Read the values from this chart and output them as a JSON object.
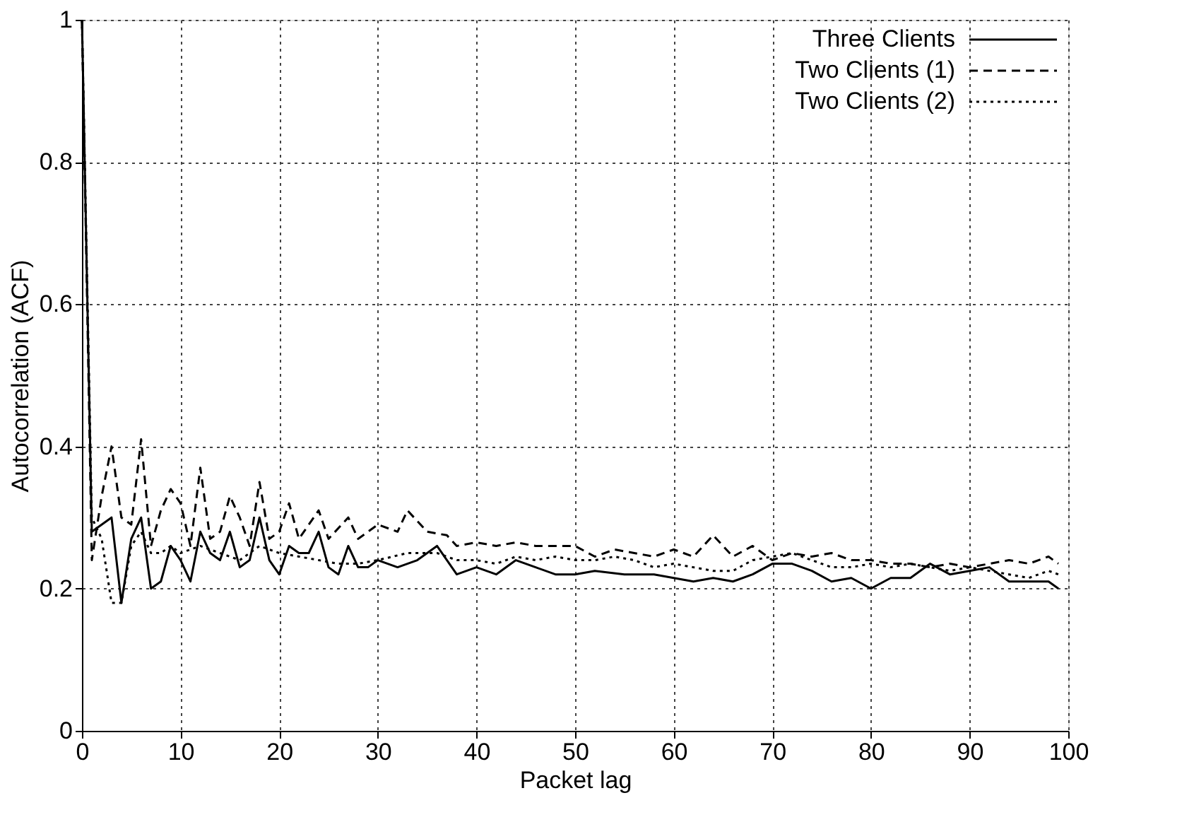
{
  "chart_data": {
    "type": "line",
    "xlabel": "Packet lag",
    "ylabel": "Autocorrelation (ACF)",
    "xlim": [
      0,
      100
    ],
    "ylim": [
      0,
      1
    ],
    "xticks": [
      0,
      10,
      20,
      30,
      40,
      50,
      60,
      70,
      80,
      90,
      100
    ],
    "yticks": [
      0,
      0.2,
      0.4,
      0.6,
      0.8,
      1
    ],
    "grid": true,
    "legend": "top right",
    "marker": "none",
    "series": [
      {
        "name": "Three Clients",
        "color": "#000000",
        "line_style": "solid",
        "x": [
          0,
          1,
          2,
          3,
          4,
          5,
          6,
          7,
          8,
          9,
          10,
          11,
          12,
          13,
          14,
          15,
          16,
          17,
          18,
          19,
          20,
          21,
          22,
          23,
          24,
          25,
          26,
          27,
          28,
          29,
          30,
          32,
          34,
          36,
          38,
          40,
          42,
          44,
          46,
          48,
          50,
          52,
          55,
          58,
          60,
          62,
          64,
          66,
          68,
          70,
          72,
          74,
          76,
          78,
          80,
          82,
          84,
          86,
          88,
          90,
          92,
          94,
          96,
          98,
          99
        ],
        "values": [
          1.0,
          0.28,
          0.29,
          0.3,
          0.18,
          0.27,
          0.3,
          0.2,
          0.21,
          0.26,
          0.24,
          0.21,
          0.28,
          0.25,
          0.24,
          0.28,
          0.23,
          0.24,
          0.3,
          0.24,
          0.22,
          0.26,
          0.25,
          0.25,
          0.28,
          0.23,
          0.22,
          0.26,
          0.23,
          0.23,
          0.24,
          0.23,
          0.24,
          0.26,
          0.22,
          0.23,
          0.22,
          0.24,
          0.23,
          0.22,
          0.22,
          0.225,
          0.22,
          0.22,
          0.215,
          0.21,
          0.215,
          0.21,
          0.22,
          0.235,
          0.235,
          0.225,
          0.21,
          0.215,
          0.2,
          0.215,
          0.215,
          0.235,
          0.22,
          0.225,
          0.23,
          0.21,
          0.21,
          0.21,
          0.2
        ]
      },
      {
        "name": "Two Clients (1)",
        "color": "#000000",
        "line_style": "dashed",
        "x": [
          0,
          1,
          2,
          3,
          4,
          5,
          6,
          7,
          8,
          9,
          10,
          11,
          12,
          13,
          14,
          15,
          16,
          17,
          18,
          19,
          20,
          21,
          22,
          24,
          25,
          27,
          28,
          30,
          32,
          33,
          35,
          37,
          38,
          40,
          42,
          44,
          46,
          48,
          50,
          52,
          54,
          56,
          58,
          60,
          62,
          64,
          66,
          68,
          70,
          72,
          74,
          76,
          78,
          80,
          82,
          84,
          86,
          88,
          90,
          92,
          94,
          96,
          98,
          99
        ],
        "values": [
          1.0,
          0.24,
          0.33,
          0.4,
          0.3,
          0.29,
          0.41,
          0.26,
          0.31,
          0.34,
          0.32,
          0.26,
          0.37,
          0.27,
          0.28,
          0.33,
          0.3,
          0.26,
          0.35,
          0.27,
          0.28,
          0.32,
          0.27,
          0.31,
          0.27,
          0.3,
          0.27,
          0.29,
          0.28,
          0.31,
          0.28,
          0.275,
          0.26,
          0.265,
          0.26,
          0.265,
          0.26,
          0.26,
          0.26,
          0.245,
          0.255,
          0.25,
          0.245,
          0.255,
          0.245,
          0.275,
          0.245,
          0.26,
          0.24,
          0.25,
          0.245,
          0.25,
          0.24,
          0.24,
          0.235,
          0.235,
          0.23,
          0.235,
          0.23,
          0.235,
          0.24,
          0.235,
          0.245,
          0.235
        ]
      },
      {
        "name": "Two Clients (2)",
        "color": "#000000",
        "line_style": "dotted",
        "x": [
          0,
          1,
          2,
          3,
          4,
          5,
          6,
          7,
          8,
          9,
          10,
          12,
          14,
          16,
          18,
          20,
          22,
          24,
          26,
          28,
          30,
          33,
          36,
          38,
          40,
          42,
          44,
          46,
          48,
          50,
          52,
          54,
          56,
          58,
          60,
          62,
          64,
          66,
          68,
          70,
          72,
          74,
          76,
          78,
          80,
          82,
          84,
          86,
          88,
          90,
          92,
          94,
          96,
          98,
          99
        ],
        "values": [
          1.0,
          0.3,
          0.27,
          0.18,
          0.18,
          0.26,
          0.28,
          0.25,
          0.25,
          0.26,
          0.25,
          0.26,
          0.25,
          0.24,
          0.26,
          0.25,
          0.245,
          0.24,
          0.235,
          0.235,
          0.24,
          0.25,
          0.25,
          0.24,
          0.24,
          0.235,
          0.245,
          0.24,
          0.245,
          0.24,
          0.24,
          0.245,
          0.24,
          0.23,
          0.235,
          0.23,
          0.225,
          0.225,
          0.24,
          0.245,
          0.25,
          0.24,
          0.23,
          0.23,
          0.235,
          0.23,
          0.235,
          0.23,
          0.225,
          0.23,
          0.225,
          0.22,
          0.215,
          0.225,
          0.22
        ]
      }
    ]
  }
}
